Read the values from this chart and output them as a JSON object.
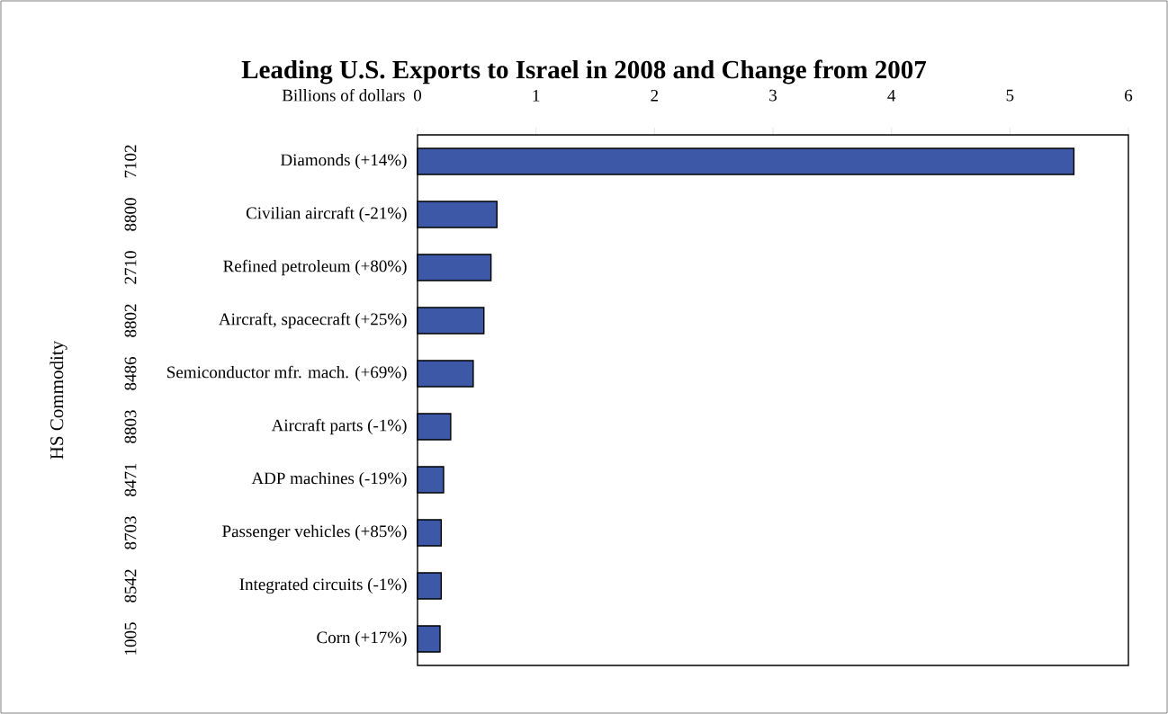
{
  "chart_data": {
    "type": "bar",
    "orientation": "horizontal",
    "title": "Leading U.S. Exports to Israel in 2008 and Change from 2007",
    "xlabel": "Billions of dollars",
    "categories": [
      "Diamonds (+14%)",
      "Civilian aircraft  (-21%)",
      "Refined petroleum (+80%)",
      "Aircraft, spacecraft  (+25%)",
      "Semiconductor mfr. mach. (+69%)",
      "Aircraft parts (-1%)",
      "ADP machines  (-19%)",
      "Passenger vehicles (+85%)",
      "Integrated circuits (-1%)",
      "Corn (+17%)"
    ],
    "values": [
      5.54,
      0.67,
      0.62,
      0.56,
      0.47,
      0.28,
      0.22,
      0.2,
      0.2,
      0.19
    ],
    "color": "#3d58a6",
    "xlim": [
      0,
      6
    ],
    "xticks": [
      0,
      1,
      2,
      3,
      4,
      5,
      6
    ],
    "annotations": [
      "7102",
      "8800",
      "2710",
      "8802",
      "8486",
      "8803",
      "8471",
      "8703",
      "8542",
      "1005",
      "HS Commodity"
    ]
  }
}
